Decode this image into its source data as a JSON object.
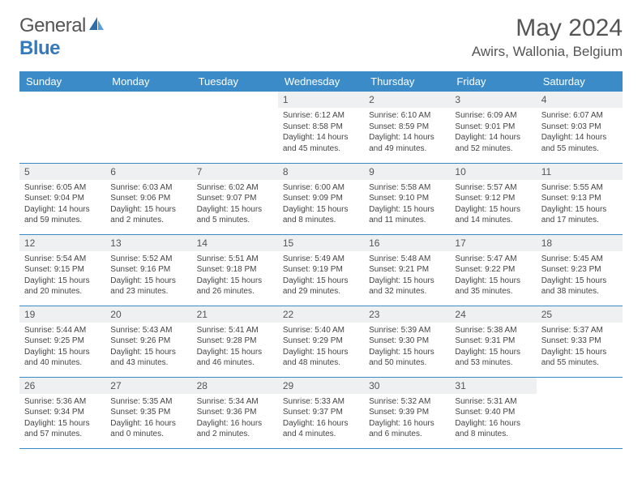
{
  "brand": {
    "part1": "General",
    "part2": "Blue"
  },
  "title": "May 2024",
  "location": "Awirs, Wallonia, Belgium",
  "colors": {
    "header_bg": "#3b8bc9",
    "header_text": "#ffffff",
    "daynum_bg": "#eef0f2",
    "text": "#444444",
    "border": "#3b8bc9",
    "brand_blue": "#357abd"
  },
  "weekdays": [
    "Sunday",
    "Monday",
    "Tuesday",
    "Wednesday",
    "Thursday",
    "Friday",
    "Saturday"
  ],
  "weeks": [
    [
      null,
      null,
      null,
      {
        "n": "1",
        "sr": "6:12 AM",
        "ss": "8:58 PM",
        "dl": "14 hours and 45 minutes."
      },
      {
        "n": "2",
        "sr": "6:10 AM",
        "ss": "8:59 PM",
        "dl": "14 hours and 49 minutes."
      },
      {
        "n": "3",
        "sr": "6:09 AM",
        "ss": "9:01 PM",
        "dl": "14 hours and 52 minutes."
      },
      {
        "n": "4",
        "sr": "6:07 AM",
        "ss": "9:03 PM",
        "dl": "14 hours and 55 minutes."
      }
    ],
    [
      {
        "n": "5",
        "sr": "6:05 AM",
        "ss": "9:04 PM",
        "dl": "14 hours and 59 minutes."
      },
      {
        "n": "6",
        "sr": "6:03 AM",
        "ss": "9:06 PM",
        "dl": "15 hours and 2 minutes."
      },
      {
        "n": "7",
        "sr": "6:02 AM",
        "ss": "9:07 PM",
        "dl": "15 hours and 5 minutes."
      },
      {
        "n": "8",
        "sr": "6:00 AM",
        "ss": "9:09 PM",
        "dl": "15 hours and 8 minutes."
      },
      {
        "n": "9",
        "sr": "5:58 AM",
        "ss": "9:10 PM",
        "dl": "15 hours and 11 minutes."
      },
      {
        "n": "10",
        "sr": "5:57 AM",
        "ss": "9:12 PM",
        "dl": "15 hours and 14 minutes."
      },
      {
        "n": "11",
        "sr": "5:55 AM",
        "ss": "9:13 PM",
        "dl": "15 hours and 17 minutes."
      }
    ],
    [
      {
        "n": "12",
        "sr": "5:54 AM",
        "ss": "9:15 PM",
        "dl": "15 hours and 20 minutes."
      },
      {
        "n": "13",
        "sr": "5:52 AM",
        "ss": "9:16 PM",
        "dl": "15 hours and 23 minutes."
      },
      {
        "n": "14",
        "sr": "5:51 AM",
        "ss": "9:18 PM",
        "dl": "15 hours and 26 minutes."
      },
      {
        "n": "15",
        "sr": "5:49 AM",
        "ss": "9:19 PM",
        "dl": "15 hours and 29 minutes."
      },
      {
        "n": "16",
        "sr": "5:48 AM",
        "ss": "9:21 PM",
        "dl": "15 hours and 32 minutes."
      },
      {
        "n": "17",
        "sr": "5:47 AM",
        "ss": "9:22 PM",
        "dl": "15 hours and 35 minutes."
      },
      {
        "n": "18",
        "sr": "5:45 AM",
        "ss": "9:23 PM",
        "dl": "15 hours and 38 minutes."
      }
    ],
    [
      {
        "n": "19",
        "sr": "5:44 AM",
        "ss": "9:25 PM",
        "dl": "15 hours and 40 minutes."
      },
      {
        "n": "20",
        "sr": "5:43 AM",
        "ss": "9:26 PM",
        "dl": "15 hours and 43 minutes."
      },
      {
        "n": "21",
        "sr": "5:41 AM",
        "ss": "9:28 PM",
        "dl": "15 hours and 46 minutes."
      },
      {
        "n": "22",
        "sr": "5:40 AM",
        "ss": "9:29 PM",
        "dl": "15 hours and 48 minutes."
      },
      {
        "n": "23",
        "sr": "5:39 AM",
        "ss": "9:30 PM",
        "dl": "15 hours and 50 minutes."
      },
      {
        "n": "24",
        "sr": "5:38 AM",
        "ss": "9:31 PM",
        "dl": "15 hours and 53 minutes."
      },
      {
        "n": "25",
        "sr": "5:37 AM",
        "ss": "9:33 PM",
        "dl": "15 hours and 55 minutes."
      }
    ],
    [
      {
        "n": "26",
        "sr": "5:36 AM",
        "ss": "9:34 PM",
        "dl": "15 hours and 57 minutes."
      },
      {
        "n": "27",
        "sr": "5:35 AM",
        "ss": "9:35 PM",
        "dl": "16 hours and 0 minutes."
      },
      {
        "n": "28",
        "sr": "5:34 AM",
        "ss": "9:36 PM",
        "dl": "16 hours and 2 minutes."
      },
      {
        "n": "29",
        "sr": "5:33 AM",
        "ss": "9:37 PM",
        "dl": "16 hours and 4 minutes."
      },
      {
        "n": "30",
        "sr": "5:32 AM",
        "ss": "9:39 PM",
        "dl": "16 hours and 6 minutes."
      },
      {
        "n": "31",
        "sr": "5:31 AM",
        "ss": "9:40 PM",
        "dl": "16 hours and 8 minutes."
      },
      null
    ]
  ],
  "labels": {
    "sunrise": "Sunrise:",
    "sunset": "Sunset:",
    "daylight": "Daylight:"
  }
}
